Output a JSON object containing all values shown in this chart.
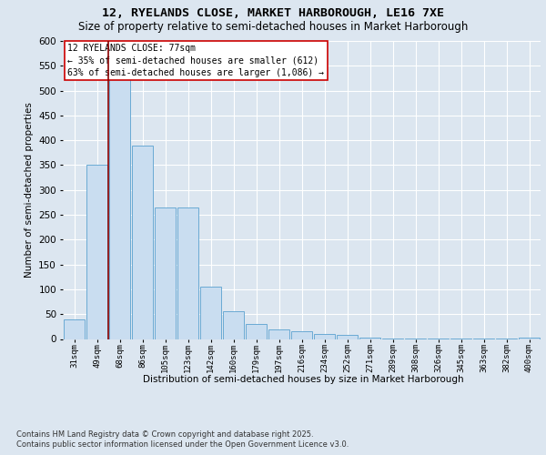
{
  "title_line1": "12, RYELANDS CLOSE, MARKET HARBOROUGH, LE16 7XE",
  "title_line2": "Size of property relative to semi-detached houses in Market Harborough",
  "xlabel": "Distribution of semi-detached houses by size in Market Harborough",
  "ylabel": "Number of semi-detached properties",
  "footnote": "Contains HM Land Registry data © Crown copyright and database right 2025.\nContains public sector information licensed under the Open Government Licence v3.0.",
  "bar_labels": [
    "31sqm",
    "49sqm",
    "68sqm",
    "86sqm",
    "105sqm",
    "123sqm",
    "142sqm",
    "160sqm",
    "179sqm",
    "197sqm",
    "216sqm",
    "234sqm",
    "252sqm",
    "271sqm",
    "289sqm",
    "308sqm",
    "326sqm",
    "345sqm",
    "363sqm",
    "382sqm",
    "400sqm"
  ],
  "bar_values": [
    40,
    350,
    550,
    390,
    265,
    265,
    105,
    55,
    30,
    20,
    15,
    10,
    8,
    3,
    1,
    1,
    1,
    1,
    1,
    1,
    3
  ],
  "bar_color": "#c9ddf0",
  "bar_edge_color": "#6aaad4",
  "vline_color": "#8b0000",
  "vline_x_index": 2,
  "annotation_title": "12 RYELANDS CLOSE: 77sqm",
  "annotation_line2": "← 35% of semi-detached houses are smaller (612)",
  "annotation_line3": "63% of semi-detached houses are larger (1,086) →",
  "annotation_box_color": "#ffffff",
  "annotation_edge_color": "#cc0000",
  "ylim": [
    0,
    600
  ],
  "yticks": [
    0,
    50,
    100,
    150,
    200,
    250,
    300,
    350,
    400,
    450,
    500,
    550,
    600
  ],
  "bg_color": "#dce6f0",
  "plot_bg_color": "#dce6f0",
  "title_fontsize": 9.5,
  "subtitle_fontsize": 8.5
}
